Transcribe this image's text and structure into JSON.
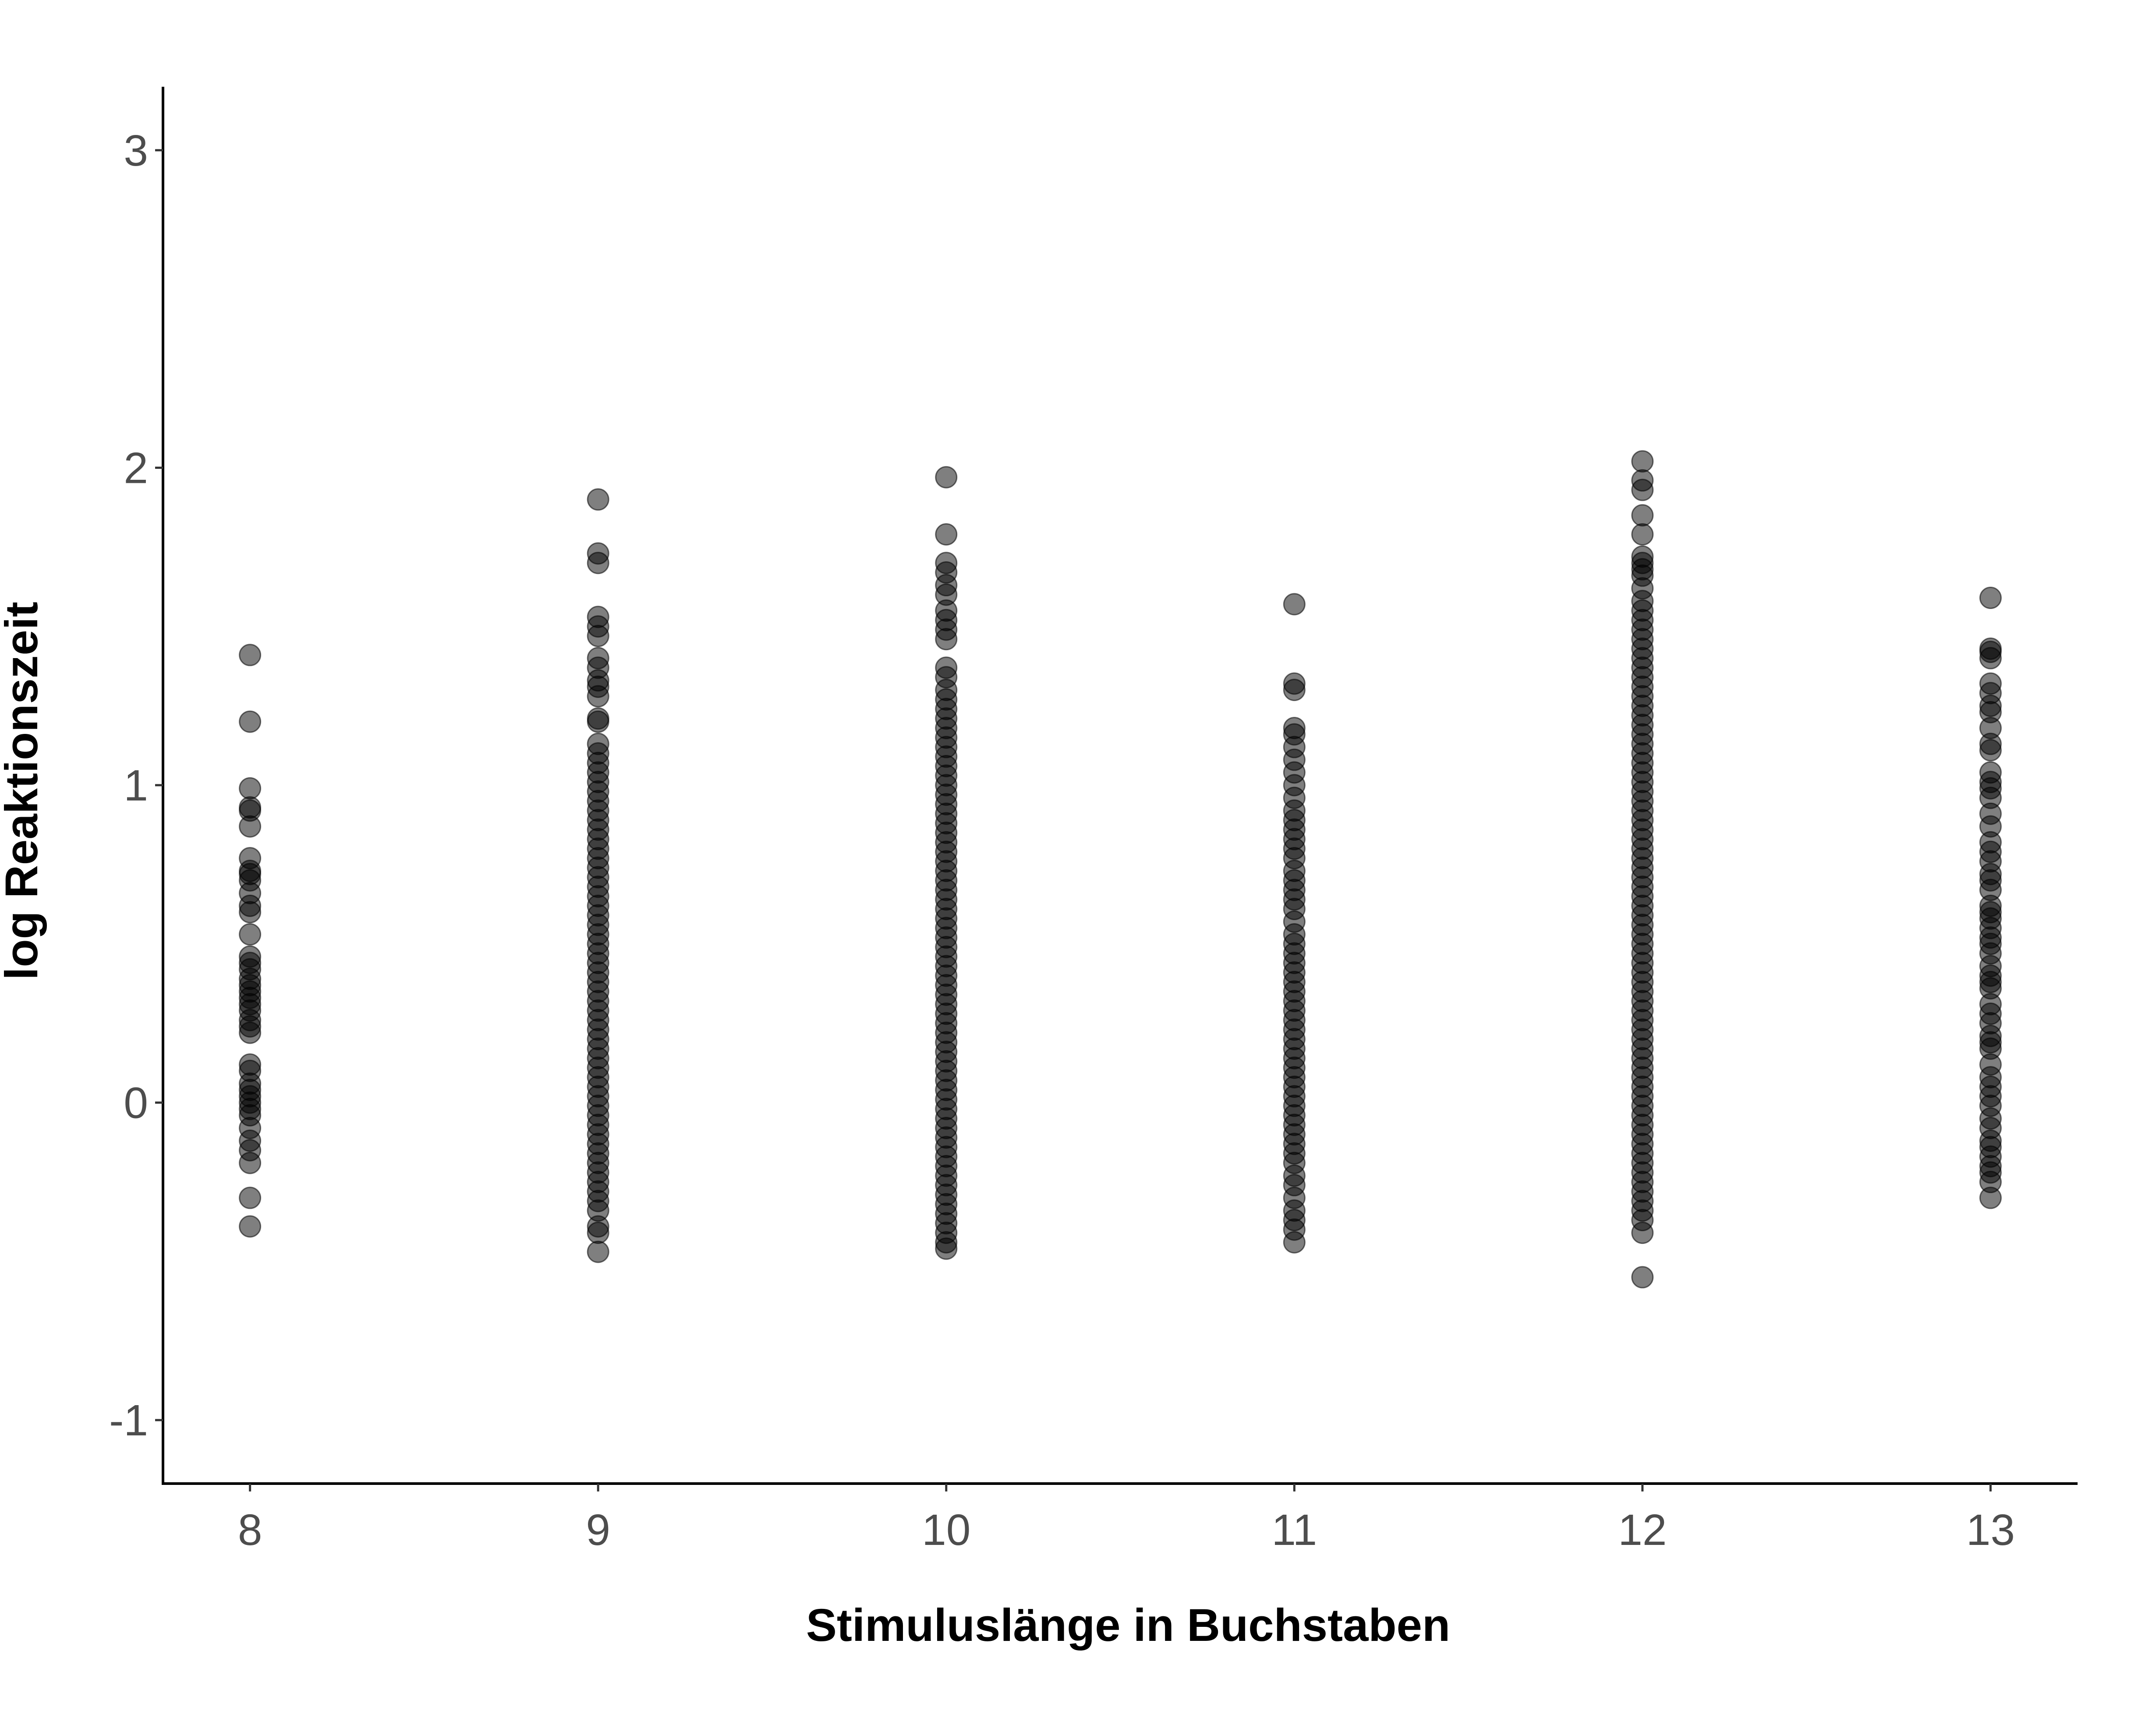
{
  "chart_data": {
    "type": "scatter",
    "xlabel": "Stimuluslänge in Buchstaben",
    "ylabel": "log Reaktionszeit",
    "xlim": [
      7.75,
      13.25
    ],
    "ylim": [
      -1.2,
      3.2
    ],
    "x_ticks": [
      "8",
      "9",
      "10",
      "11",
      "12",
      "13"
    ],
    "y_ticks": [
      "-1",
      "0",
      "1",
      "2",
      "3"
    ],
    "grid": false,
    "legend": "none",
    "colors": {
      "point": "#000000",
      "axis": "#000000",
      "tick_text": "#4d4d4d"
    },
    "series": [
      {
        "x": 8,
        "y": [
          1.41,
          1.2,
          0.99,
          0.93,
          0.92,
          0.87,
          0.77,
          0.73,
          0.72,
          0.7,
          0.66,
          0.62,
          0.6,
          0.53,
          0.46,
          0.44,
          0.42,
          0.39,
          0.37,
          0.35,
          0.33,
          0.31,
          0.29,
          0.26,
          0.24,
          0.22,
          0.12,
          0.1,
          0.06,
          0.04,
          0.02,
          0.0,
          -0.02,
          -0.04,
          -0.08,
          -0.12,
          -0.15,
          -0.19,
          -0.3,
          -0.39
        ]
      },
      {
        "x": 9,
        "y": [
          1.9,
          1.73,
          1.7,
          1.53,
          1.5,
          1.47,
          1.4,
          1.37,
          1.33,
          1.31,
          1.28,
          1.21,
          1.2,
          1.13,
          1.1,
          1.07,
          1.04,
          1.01,
          0.98,
          0.95,
          0.92,
          0.89,
          0.86,
          0.83,
          0.8,
          0.77,
          0.74,
          0.71,
          0.68,
          0.65,
          0.62,
          0.59,
          0.56,
          0.53,
          0.5,
          0.47,
          0.44,
          0.41,
          0.38,
          0.35,
          0.32,
          0.29,
          0.26,
          0.23,
          0.2,
          0.17,
          0.14,
          0.11,
          0.08,
          0.05,
          0.02,
          -0.01,
          -0.04,
          -0.07,
          -0.1,
          -0.13,
          -0.16,
          -0.19,
          -0.22,
          -0.25,
          -0.28,
          -0.31,
          -0.34,
          -0.39,
          -0.41,
          -0.47
        ]
      },
      {
        "x": 10,
        "y": [
          1.97,
          1.79,
          1.7,
          1.67,
          1.63,
          1.6,
          1.55,
          1.52,
          1.49,
          1.46,
          1.37,
          1.34,
          1.3,
          1.27,
          1.24,
          1.21,
          1.18,
          1.15,
          1.12,
          1.09,
          1.06,
          1.03,
          1.0,
          0.97,
          0.94,
          0.91,
          0.88,
          0.85,
          0.82,
          0.79,
          0.76,
          0.73,
          0.7,
          0.67,
          0.64,
          0.61,
          0.58,
          0.55,
          0.52,
          0.49,
          0.46,
          0.43,
          0.4,
          0.37,
          0.34,
          0.31,
          0.28,
          0.25,
          0.22,
          0.19,
          0.16,
          0.13,
          0.1,
          0.07,
          0.04,
          0.01,
          -0.02,
          -0.05,
          -0.08,
          -0.11,
          -0.14,
          -0.17,
          -0.2,
          -0.23,
          -0.26,
          -0.29,
          -0.32,
          -0.35,
          -0.38,
          -0.41,
          -0.44,
          -0.46
        ]
      },
      {
        "x": 11,
        "y": [
          1.57,
          1.32,
          1.3,
          1.18,
          1.16,
          1.12,
          1.08,
          1.04,
          1.0,
          0.96,
          0.92,
          0.89,
          0.86,
          0.83,
          0.8,
          0.77,
          0.73,
          0.7,
          0.67,
          0.64,
          0.61,
          0.57,
          0.53,
          0.5,
          0.47,
          0.44,
          0.41,
          0.38,
          0.35,
          0.32,
          0.29,
          0.26,
          0.23,
          0.2,
          0.17,
          0.14,
          0.11,
          0.08,
          0.05,
          0.02,
          -0.01,
          -0.04,
          -0.07,
          -0.1,
          -0.13,
          -0.16,
          -0.19,
          -0.23,
          -0.26,
          -0.3,
          -0.34,
          -0.37,
          -0.4,
          -0.44
        ]
      },
      {
        "x": 12,
        "y": [
          2.02,
          1.96,
          1.93,
          1.85,
          1.79,
          1.72,
          1.7,
          1.68,
          1.66,
          1.62,
          1.58,
          1.55,
          1.52,
          1.49,
          1.46,
          1.43,
          1.4,
          1.37,
          1.34,
          1.31,
          1.28,
          1.25,
          1.22,
          1.19,
          1.16,
          1.13,
          1.1,
          1.07,
          1.04,
          1.01,
          0.98,
          0.95,
          0.92,
          0.89,
          0.86,
          0.83,
          0.8,
          0.77,
          0.74,
          0.71,
          0.68,
          0.65,
          0.62,
          0.59,
          0.56,
          0.53,
          0.5,
          0.47,
          0.44,
          0.41,
          0.38,
          0.35,
          0.32,
          0.29,
          0.26,
          0.23,
          0.2,
          0.17,
          0.14,
          0.11,
          0.08,
          0.05,
          0.02,
          -0.01,
          -0.04,
          -0.07,
          -0.1,
          -0.13,
          -0.16,
          -0.19,
          -0.22,
          -0.25,
          -0.28,
          -0.31,
          -0.34,
          -0.37,
          -0.41,
          -0.55
        ]
      },
      {
        "x": 13,
        "y": [
          1.59,
          1.43,
          1.42,
          1.4,
          1.32,
          1.29,
          1.25,
          1.23,
          1.18,
          1.13,
          1.11,
          1.04,
          1.01,
          0.99,
          0.96,
          0.91,
          0.87,
          0.82,
          0.79,
          0.76,
          0.72,
          0.7,
          0.67,
          0.62,
          0.6,
          0.58,
          0.55,
          0.52,
          0.5,
          0.47,
          0.43,
          0.4,
          0.38,
          0.36,
          0.31,
          0.28,
          0.25,
          0.21,
          0.19,
          0.17,
          0.12,
          0.08,
          0.05,
          0.02,
          -0.01,
          -0.05,
          -0.08,
          -0.12,
          -0.14,
          -0.17,
          -0.2,
          -0.22,
          -0.25,
          -0.3
        ]
      }
    ]
  }
}
